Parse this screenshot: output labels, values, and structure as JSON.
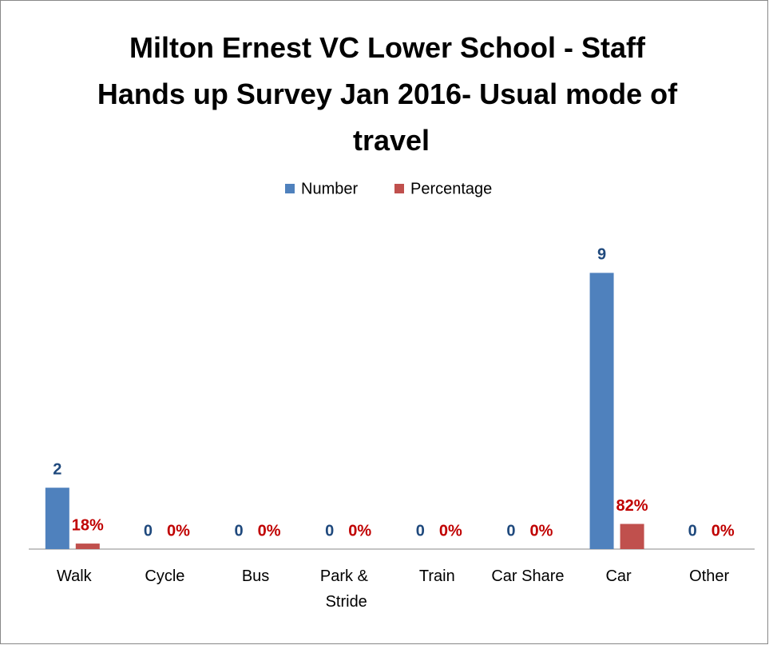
{
  "chart_data": {
    "type": "bar",
    "title": "Milton Ernest VC Lower School - Staff Hands up Survey Jan 2016- Usual mode of travel",
    "categories": [
      "Walk",
      "Cycle",
      "Bus",
      "Park & Stride",
      "Train",
      "Car Share",
      "Car",
      "Other"
    ],
    "series": [
      {
        "name": "Number",
        "color": "#4f81bd",
        "label_color": "#1f497d",
        "values": [
          2,
          0,
          0,
          0,
          0,
          0,
          9,
          0
        ]
      },
      {
        "name": "Percentage",
        "color": "#c0504d",
        "label_color": "#c00000",
        "values": [
          0.18,
          0,
          0,
          0,
          0,
          0,
          0.82,
          0
        ],
        "value_labels": [
          "18%",
          "0%",
          "0%",
          "0%",
          "0%",
          "0%",
          "82%",
          "0%"
        ]
      }
    ],
    "ylim": [
      0,
      10
    ],
    "legend": "top"
  }
}
